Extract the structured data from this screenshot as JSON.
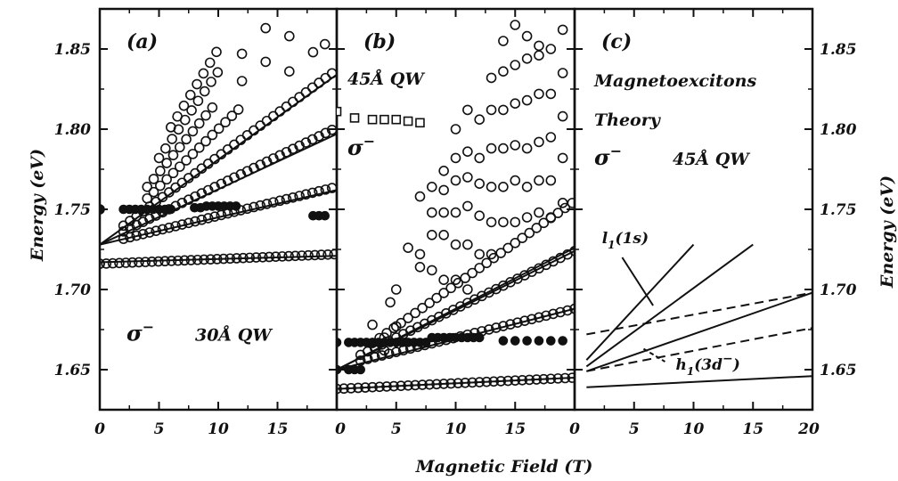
{
  "chart_data": {
    "type": "scatter",
    "shared_axes": {
      "xlabel": "Magnetic Field (T)",
      "ylabel": "Energy (eV)",
      "ylim": [
        1.625,
        1.875
      ],
      "y_ticks": [
        "1.65",
        "1.70",
        "1.75",
        "1.80",
        "1.85"
      ],
      "y_tick_values": [
        1.65,
        1.7,
        1.75,
        1.8,
        1.85
      ]
    },
    "panels": [
      {
        "label": "(a)",
        "xlim": [
          0,
          20
        ],
        "x_ticks": [
          "0",
          "5",
          "10",
          "15"
        ],
        "x_tick_values": [
          0,
          5,
          10,
          15
        ],
        "annotations": {
          "sigma": "σ",
          "sigma_sup": "−",
          "sample": "30Å  QW"
        },
        "series": [
          {
            "marker": "open-circle",
            "fans": [
              {
                "x0": 0,
                "y0": 1.716,
                "slope": 0.0003,
                "xmax": 20,
                "step": 0.55
              },
              {
                "x0": 2,
                "y0": 1.728,
                "slope": 0.0018,
                "xmax": 20,
                "step": 0.55
              },
              {
                "x0": 2,
                "y0": 1.729,
                "slope": 0.0036,
                "xmax": 20,
                "step": 0.55
              },
              {
                "x0": 2,
                "y0": 1.729,
                "slope": 0.0054,
                "xmax": 20,
                "step": 0.55
              },
              {
                "x0": 4,
                "y0": 1.728,
                "slope": 0.0072,
                "xmax": 12,
                "step": 0.55
              },
              {
                "x0": 4,
                "y0": 1.728,
                "slope": 0.009,
                "xmax": 10,
                "step": 0.55
              },
              {
                "x0": 5,
                "y0": 1.728,
                "slope": 0.0108,
                "xmax": 10,
                "step": 0.55
              },
              {
                "x0": 6,
                "y0": 1.728,
                "slope": 0.0122,
                "xmax": 10,
                "step": 0.55
              }
            ],
            "points": [
              [
                0,
                1.716
              ],
              [
                0,
                1.75
              ],
              [
                12,
                1.83
              ],
              [
                12,
                1.847
              ],
              [
                14,
                1.842
              ],
              [
                14,
                1.863
              ],
              [
                16,
                1.836
              ],
              [
                16,
                1.858
              ],
              [
                18,
                1.848
              ],
              [
                19,
                1.853
              ]
            ]
          },
          {
            "marker": "filled-circle",
            "points": [
              [
                0,
                1.75
              ],
              [
                2,
                1.75
              ],
              [
                2.5,
                1.75
              ],
              [
                3,
                1.75
              ],
              [
                3.5,
                1.75
              ],
              [
                4,
                1.75
              ],
              [
                4.5,
                1.75
              ],
              [
                5,
                1.75
              ],
              [
                5.5,
                1.75
              ],
              [
                6,
                1.75
              ],
              [
                8,
                1.751
              ],
              [
                8.5,
                1.751
              ],
              [
                9,
                1.752
              ],
              [
                9.5,
                1.752
              ],
              [
                10,
                1.752
              ],
              [
                10.5,
                1.752
              ],
              [
                11,
                1.752
              ],
              [
                11.5,
                1.752
              ],
              [
                18,
                1.746
              ],
              [
                18.5,
                1.746
              ],
              [
                19,
                1.746
              ]
            ]
          }
        ],
        "lines": [
          {
            "y0": 1.728,
            "y1": 1.834,
            "x0": 0,
            "x1": 20
          },
          {
            "y0": 1.728,
            "y1": 1.797,
            "x0": 0,
            "x1": 20
          },
          {
            "y0": 1.728,
            "y1": 1.762,
            "x0": 0,
            "x1": 20
          },
          {
            "y0": 1.717,
            "y1": 1.721,
            "x0": 0,
            "x1": 20
          }
        ]
      },
      {
        "label": "(b)",
        "xlim": [
          0,
          20
        ],
        "x_ticks": [
          "0",
          "5",
          "10",
          "15"
        ],
        "x_tick_values": [
          0,
          5,
          10,
          15
        ],
        "annotations": {
          "sample": "45Å  QW",
          "sigma": "σ",
          "sigma_sup": "−"
        },
        "series": [
          {
            "marker": "open-square",
            "points": [
              [
                0,
                1.811
              ],
              [
                1.5,
                1.807
              ],
              [
                3,
                1.806
              ],
              [
                4,
                1.806
              ],
              [
                5,
                1.806
              ],
              [
                6,
                1.805
              ],
              [
                7,
                1.804
              ]
            ]
          },
          {
            "marker": "open-circle",
            "fans": [
              {
                "x0": 0,
                "y0": 1.638,
                "slope": 0.00035,
                "xmax": 20,
                "step": 0.6
              },
              {
                "x0": 2,
                "y0": 1.652,
                "slope": 0.0018,
                "xmax": 20,
                "step": 0.6
              },
              {
                "x0": 2,
                "y0": 1.652,
                "slope": 0.0036,
                "xmax": 20,
                "step": 0.6
              },
              {
                "x0": 3,
                "y0": 1.651,
                "slope": 0.0052,
                "xmax": 20,
                "step": 0.6
              }
            ],
            "points": [
              [
                4,
                1.662
              ],
              [
                4,
                1.67
              ],
              [
                3,
                1.678
              ],
              [
                5,
                1.677
              ],
              [
                4.5,
                1.692
              ],
              [
                5,
                1.7
              ],
              [
                7,
                1.714
              ],
              [
                8,
                1.712
              ],
              [
                9,
                1.706
              ],
              [
                10,
                1.706
              ],
              [
                11,
                1.7
              ],
              [
                6,
                1.726
              ],
              [
                7,
                1.722
              ],
              [
                8,
                1.734
              ],
              [
                9,
                1.734
              ],
              [
                10,
                1.728
              ],
              [
                11,
                1.728
              ],
              [
                12,
                1.722
              ],
              [
                13,
                1.722
              ],
              [
                8,
                1.748
              ],
              [
                9,
                1.748
              ],
              [
                10,
                1.748
              ],
              [
                11,
                1.752
              ],
              [
                12,
                1.746
              ],
              [
                13,
                1.742
              ],
              [
                14,
                1.742
              ],
              [
                15,
                1.742
              ],
              [
                16,
                1.745
              ],
              [
                17,
                1.748
              ],
              [
                18,
                1.745
              ],
              [
                19,
                1.754
              ],
              [
                7,
                1.758
              ],
              [
                8,
                1.764
              ],
              [
                9,
                1.762
              ],
              [
                10,
                1.768
              ],
              [
                11,
                1.77
              ],
              [
                12,
                1.766
              ],
              [
                13,
                1.764
              ],
              [
                14,
                1.764
              ],
              [
                15,
                1.768
              ],
              [
                16,
                1.764
              ],
              [
                17,
                1.768
              ],
              [
                18,
                1.768
              ],
              [
                19,
                1.782
              ],
              [
                9,
                1.774
              ],
              [
                10,
                1.782
              ],
              [
                11,
                1.786
              ],
              [
                12,
                1.782
              ],
              [
                13,
                1.788
              ],
              [
                14,
                1.788
              ],
              [
                15,
                1.79
              ],
              [
                16,
                1.788
              ],
              [
                17,
                1.792
              ],
              [
                18,
                1.795
              ],
              [
                19,
                1.808
              ],
              [
                10,
                1.8
              ],
              [
                11,
                1.812
              ],
              [
                12,
                1.806
              ],
              [
                13,
                1.812
              ],
              [
                14,
                1.812
              ],
              [
                15,
                1.816
              ],
              [
                16,
                1.818
              ],
              [
                17,
                1.822
              ],
              [
                18,
                1.822
              ],
              [
                19,
                1.835
              ],
              [
                13,
                1.832
              ],
              [
                14,
                1.836
              ],
              [
                15,
                1.84
              ],
              [
                16,
                1.844
              ],
              [
                17,
                1.846
              ],
              [
                18,
                1.85
              ],
              [
                19,
                1.862
              ],
              [
                14,
                1.855
              ],
              [
                15,
                1.865
              ],
              [
                16,
                1.858
              ],
              [
                17,
                1.852
              ]
            ]
          },
          {
            "marker": "filled-circle",
            "points": [
              [
                0,
                1.667
              ],
              [
                1,
                1.667
              ],
              [
                1.5,
                1.667
              ],
              [
                2,
                1.667
              ],
              [
                2.5,
                1.667
              ],
              [
                3,
                1.667
              ],
              [
                3.5,
                1.667
              ],
              [
                4,
                1.667
              ],
              [
                4.5,
                1.667
              ],
              [
                5,
                1.667
              ],
              [
                5.5,
                1.667
              ],
              [
                6,
                1.667
              ],
              [
                6.5,
                1.667
              ],
              [
                7,
                1.667
              ],
              [
                7.5,
                1.667
              ],
              [
                8,
                1.67
              ],
              [
                8.5,
                1.67
              ],
              [
                9,
                1.67
              ],
              [
                9.5,
                1.67
              ],
              [
                10,
                1.67
              ],
              [
                10.5,
                1.67
              ],
              [
                11,
                1.67
              ],
              [
                11.5,
                1.67
              ],
              [
                12,
                1.67
              ],
              [
                14,
                1.668
              ],
              [
                15,
                1.668
              ],
              [
                16,
                1.668
              ],
              [
                17,
                1.668
              ],
              [
                18,
                1.668
              ],
              [
                19,
                1.668
              ],
              [
                0,
                1.65
              ],
              [
                1,
                1.65
              ],
              [
                1.5,
                1.65
              ],
              [
                2,
                1.65
              ]
            ]
          }
        ],
        "lines": [
          {
            "y0": 1.65,
            "y1": 1.726,
            "x0": 0,
            "x1": 20
          },
          {
            "y0": 1.65,
            "y1": 1.724,
            "x0": 0,
            "x1": 20
          },
          {
            "y0": 1.65,
            "y1": 1.688,
            "x0": 0,
            "x1": 20
          },
          {
            "y0": 1.638,
            "y1": 1.645,
            "x0": 0,
            "x1": 20
          }
        ]
      },
      {
        "label": "(c)",
        "xlim": [
          0,
          20
        ],
        "x_ticks": [
          "0",
          "5",
          "10",
          "15",
          "20"
        ],
        "x_tick_values": [
          0,
          5,
          10,
          15,
          20
        ],
        "annotations": {
          "title_line1": "Magnetoexcitons",
          "title_line2": "Theory",
          "sigma": "σ",
          "sigma_sup": "−",
          "sample": "45Å  QW",
          "curve_label_1": "l",
          "curve_label_1_sub": "1",
          "curve_label_1_rest": "(1s)",
          "curve_label_2": "h",
          "curve_label_2_sub": "1",
          "curve_label_2_rest": "(3d",
          "curve_label_2_sup": "−",
          "curve_label_2_end": ")"
        },
        "lines": [
          {
            "style": "solid",
            "points": [
              [
                1,
                1.656
              ],
              [
                10,
                1.728
              ]
            ]
          },
          {
            "style": "solid",
            "points": [
              [
                1,
                1.652
              ],
              [
                15,
                1.728
              ]
            ]
          },
          {
            "style": "solid",
            "points": [
              [
                1,
                1.649
              ],
              [
                20,
                1.698
              ]
            ]
          },
          {
            "style": "solid",
            "points": [
              [
                1,
                1.639
              ],
              [
                20,
                1.646
              ]
            ]
          },
          {
            "style": "dashed",
            "points": [
              [
                1,
                1.672
              ],
              [
                20,
                1.698
              ]
            ]
          },
          {
            "style": "dashed",
            "points": [
              [
                1,
                1.649
              ],
              [
                20,
                1.676
              ]
            ]
          }
        ]
      }
    ]
  }
}
